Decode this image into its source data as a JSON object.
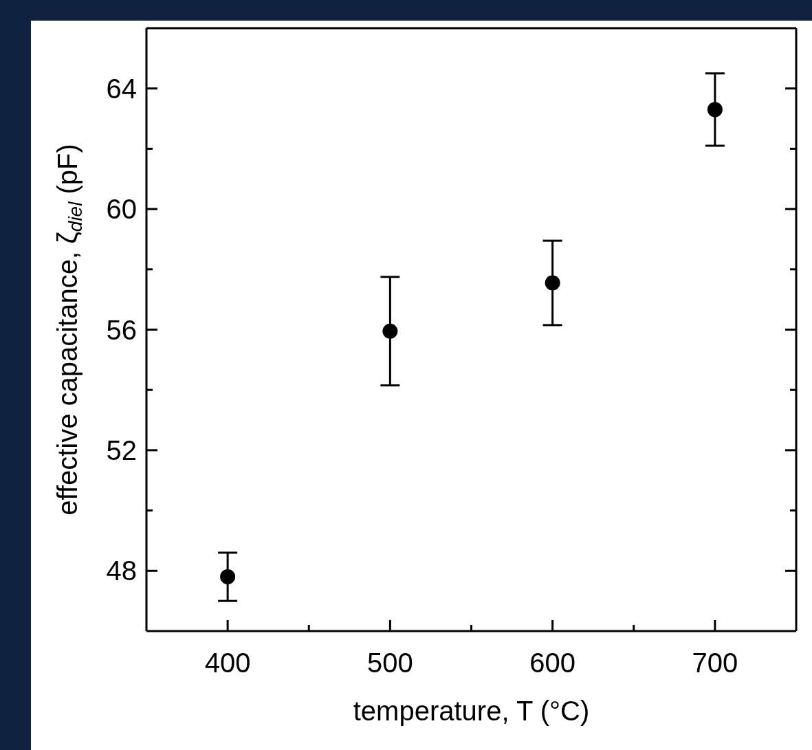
{
  "chart_data": {
    "type": "scatter",
    "xlabel": "temperature, T (°C)",
    "ylabel": "effective capacitance, ζ$_{diel}$ (pF)",
    "x": [
      400,
      500,
      600,
      700
    ],
    "series": [
      {
        "color": "#000000",
        "values": [
          47.8,
          55.95,
          57.55,
          63.3
        ],
        "errors": [
          0.8,
          1.8,
          1.4,
          1.2
        ]
      }
    ],
    "xlim": [
      350,
      750
    ],
    "xticks": [
      400,
      {
        "value": 450,
        "label": null
      },
      500,
      {
        "value": 550,
        "label": null
      },
      600,
      {
        "value": 650,
        "label": null
      },
      700
    ],
    "ylim": [
      46,
      66
    ],
    "yticks": [
      48,
      {
        "value": 50,
        "label": null
      },
      52,
      {
        "value": 54,
        "label": null
      },
      56,
      {
        "value": 58,
        "label": null
      },
      60,
      {
        "value": 62,
        "label": null
      },
      64
    ],
    "marker": "circle",
    "grid": false
  }
}
